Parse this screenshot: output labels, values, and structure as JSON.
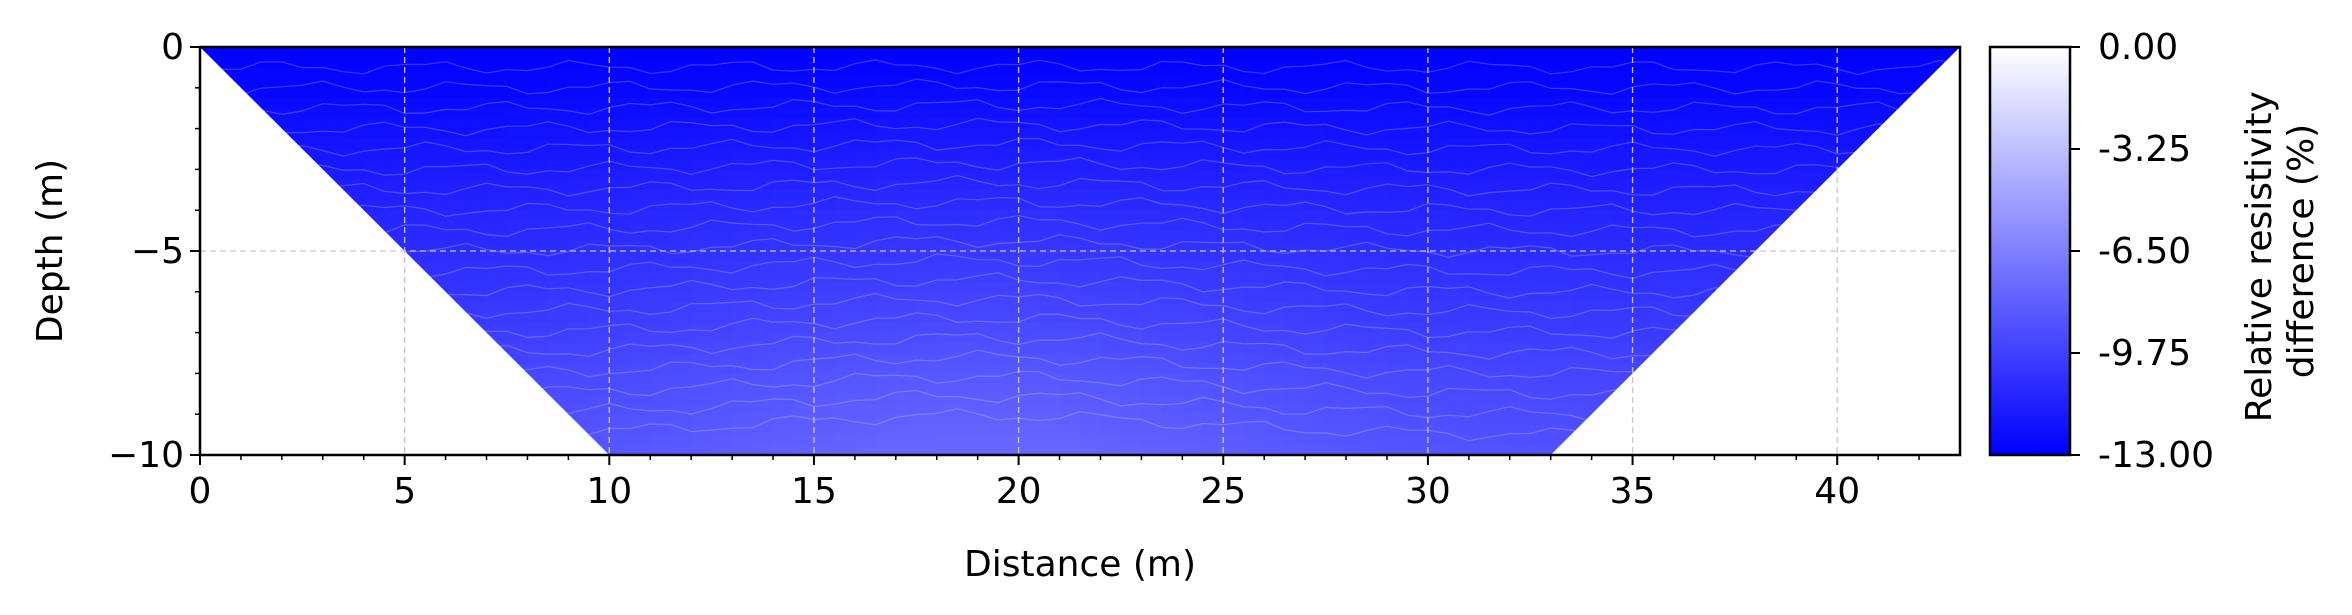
{
  "chart_data": {
    "type": "heatmap",
    "title": "",
    "xlabel": "Distance (m)",
    "ylabel": "Depth (m)",
    "xlim": [
      0,
      43
    ],
    "ylim": [
      -10,
      0
    ],
    "x_ticks": [
      0,
      5,
      10,
      15,
      20,
      25,
      30,
      35,
      40
    ],
    "x_tick_labels": [
      "0",
      "5",
      "10",
      "15",
      "20",
      "25",
      "30",
      "35",
      "40"
    ],
    "y_ticks": [
      0,
      -5,
      -10
    ],
    "y_tick_labels": [
      "0",
      "−5",
      "−10"
    ],
    "grid": true,
    "data_region": {
      "surface_depth": 0,
      "bottom_depth": -10,
      "left_edge": [
        [
          0,
          0
        ],
        [
          10,
          -10
        ]
      ],
      "right_edge": [
        [
          43,
          0
        ],
        [
          33,
          -10
        ]
      ]
    },
    "depth_profile": {
      "depths": [
        0,
        -1,
        -2,
        -3,
        -4,
        -5,
        -6,
        -7,
        -8,
        -9,
        -10
      ],
      "values": [
        -13.0,
        -12.7,
        -12.2,
        -11.7,
        -11.2,
        -10.8,
        -10.4,
        -10.0,
        -9.5,
        -9.2,
        -8.9
      ]
    },
    "lateral_anomaly": {
      "center_distance": 19,
      "max_increase": 1.2,
      "note": "less negative (lighter) zone between ~15 and ~27 m at depth"
    },
    "colorbar": {
      "label": "Relative resistivity difference (%)",
      "label_lines": [
        "Relative resistivity",
        "difference (%)"
      ],
      "ticks": [
        0.0,
        -3.25,
        -6.5,
        -9.75,
        -13.0
      ],
      "tick_labels": [
        "0.00",
        "-3.25",
        "-6.50",
        "-9.75",
        "-13.00"
      ],
      "range": [
        -13.0,
        0.0
      ],
      "color_at_min": "#0000ff",
      "color_at_max": "#ffffff"
    }
  }
}
